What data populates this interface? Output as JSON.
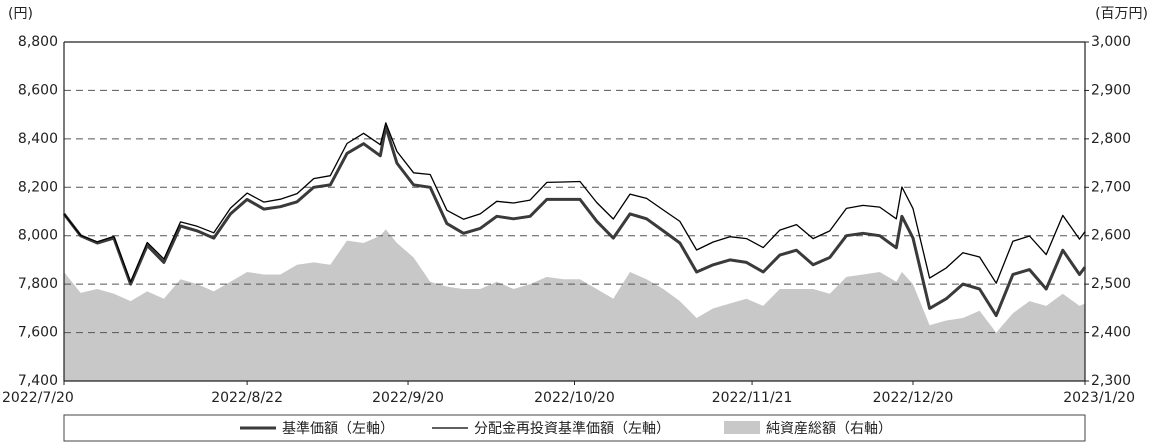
{
  "chart_data": {
    "type": "line",
    "y_unit": "(円)",
    "y2_unit": "(百万円)",
    "x": [
      "2022/7/20",
      "2022/7/23",
      "2022/7/26",
      "2022/7/29",
      "2022/8/1",
      "2022/8/4",
      "2022/8/7",
      "2022/8/10",
      "2022/8/13",
      "2022/8/16",
      "2022/8/19",
      "2022/8/22",
      "2022/8/25",
      "2022/8/28",
      "2022/8/31",
      "2022/9/3",
      "2022/9/6",
      "2022/9/9",
      "2022/9/12",
      "2022/9/15",
      "2022/9/16",
      "2022/9/18",
      "2022/9/21",
      "2022/9/24",
      "2022/9/27",
      "2022/9/30",
      "2022/10/3",
      "2022/10/6",
      "2022/10/9",
      "2022/10/12",
      "2022/10/15",
      "2022/10/18",
      "2022/10/21",
      "2022/10/24",
      "2022/10/27",
      "2022/10/30",
      "2022/11/2",
      "2022/11/5",
      "2022/11/8",
      "2022/11/11",
      "2022/11/14",
      "2022/11/17",
      "2022/11/20",
      "2022/11/23",
      "2022/11/26",
      "2022/11/29",
      "2022/12/2",
      "2022/12/5",
      "2022/12/8",
      "2022/12/11",
      "2022/12/14",
      "2022/12/17",
      "2022/12/18",
      "2022/12/20",
      "2022/12/23",
      "2022/12/26",
      "2022/12/29",
      "2023/1/1",
      "2023/1/4",
      "2023/1/7",
      "2023/1/10",
      "2023/1/13",
      "2023/1/16",
      "2023/1/19",
      "2023/1/20"
    ],
    "series": [
      {
        "name": "純資産総額（右軸）",
        "type": "area",
        "axis": "y2",
        "color": "#c8c8c8",
        "values": [
          2525,
          2482,
          2490,
          2480,
          2465,
          2485,
          2470,
          2510,
          2500,
          2485,
          2505,
          2525,
          2520,
          2520,
          2540,
          2545,
          2540,
          2590,
          2585,
          2600,
          2613,
          2585,
          2555,
          2505,
          2495,
          2490,
          2490,
          2505,
          2490,
          2500,
          2515,
          2510,
          2510,
          2490,
          2470,
          2525,
          2510,
          2490,
          2465,
          2430,
          2450,
          2460,
          2470,
          2455,
          2490,
          2490,
          2490,
          2480,
          2515,
          2520,
          2525,
          2505,
          2525,
          2500,
          2415,
          2425,
          2430,
          2445,
          2400,
          2440,
          2465,
          2455,
          2480,
          2455,
          2460
        ]
      },
      {
        "name": "基準価額（左軸）",
        "type": "line",
        "axis": "y",
        "color": "#3a3a3a",
        "line_width": 3,
        "values": [
          8090,
          8000,
          7970,
          7990,
          7800,
          7960,
          7890,
          8040,
          8020,
          7990,
          8090,
          8150,
          8110,
          8120,
          8140,
          8200,
          8210,
          8340,
          8380,
          8330,
          8450,
          8300,
          8210,
          8200,
          8050,
          8010,
          8030,
          8080,
          8070,
          8080,
          8150,
          8150,
          8150,
          8060,
          7990,
          8090,
          8070,
          8020,
          7970,
          7850,
          7880,
          7900,
          7890,
          7850,
          7920,
          7940,
          7880,
          7910,
          8000,
          8010,
          8000,
          7950,
          8080,
          7990,
          7700,
          7740,
          7800,
          7780,
          7670,
          7840,
          7860,
          7780,
          7940,
          7840,
          7870
        ]
      },
      {
        "name": "分配金再投資基準価額（左軸）",
        "type": "line",
        "axis": "y",
        "color": "#000000",
        "line_width": 1.3,
        "values": [
          8090,
          8002,
          7975,
          7997,
          7810,
          7972,
          7904,
          8057,
          8039,
          8012,
          8114,
          8176,
          8139,
          8151,
          8174,
          8236,
          8248,
          8381,
          8423,
          8376,
          8466,
          8348,
          8260,
          8253,
          8105,
          8068,
          8090,
          8142,
          8135,
          8147,
          8220,
          8222,
          8224,
          8137,
          8069,
          8172,
          8154,
          8106,
          8059,
          7941,
          7974,
          7996,
          7988,
          7951,
          8023,
          8046,
          7988,
          8020,
          8113,
          8125,
          8118,
          8070,
          8201,
          8112,
          7825,
          7867,
          7930,
          7912,
          7804,
          7977,
          7999,
          7922,
          8084,
          7986,
          8017
        ]
      }
    ],
    "xlim": [
      "2022/7/20",
      "2023/1/20"
    ],
    "xticks": [
      "2022/7/20",
      "2022/8/22",
      "2022/9/20",
      "2022/10/20",
      "2022/11/21",
      "2022/12/20",
      "2023/1/20"
    ],
    "ylim": [
      7400,
      8800
    ],
    "yticks": [
      {
        "value": 7400,
        "label": "7,400"
      },
      {
        "value": 7600,
        "label": "7,600"
      },
      {
        "value": 7800,
        "label": "7,800"
      },
      {
        "value": 8000,
        "label": "8,000"
      },
      {
        "value": 8200,
        "label": "8,200"
      },
      {
        "value": 8400,
        "label": "8,400"
      },
      {
        "value": 8600,
        "label": "8,600"
      },
      {
        "value": 8800,
        "label": "8,800"
      }
    ],
    "y2lim": [
      2300,
      3000
    ],
    "y2ticks": [
      {
        "value": 2300,
        "label": "2,300"
      },
      {
        "value": 2400,
        "label": "2,400"
      },
      {
        "value": 2500,
        "label": "2,500"
      },
      {
        "value": 2600,
        "label": "2,600"
      },
      {
        "value": 2700,
        "label": "2,700"
      },
      {
        "value": 2800,
        "label": "2,800"
      },
      {
        "value": 2900,
        "label": "2,900"
      },
      {
        "value": 3000,
        "label": "3,000"
      }
    ],
    "grid": true,
    "legend": "bottom"
  }
}
